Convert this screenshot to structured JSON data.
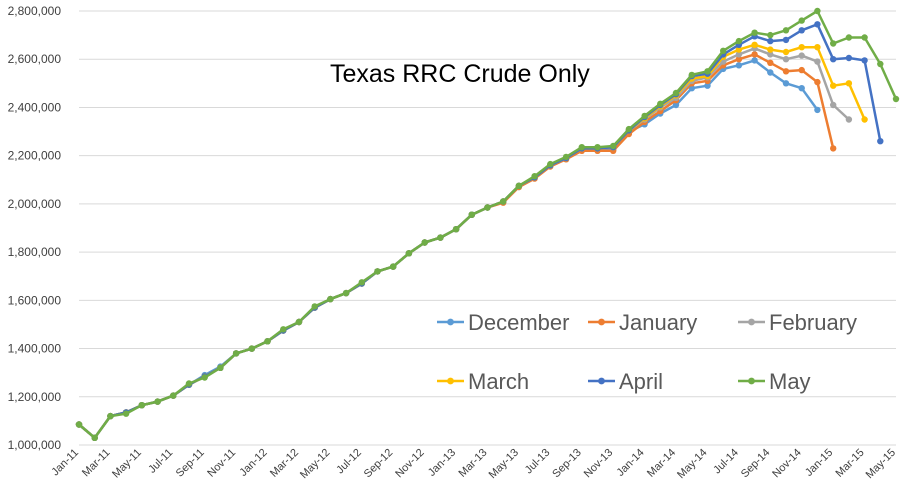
{
  "chart_data": {
    "type": "line",
    "title": "Texas RRC Crude Only",
    "xlabel": "",
    "ylabel": "",
    "ylim": [
      1000000,
      2800000
    ],
    "y_ticks": [
      1000000,
      1200000,
      1400000,
      1600000,
      1800000,
      2000000,
      2200000,
      2400000,
      2600000,
      2800000
    ],
    "y_tick_labels": [
      "1,000,000",
      "1,200,000",
      "1,400,000",
      "1,600,000",
      "1,800,000",
      "2,000,000",
      "2,200,000",
      "2,400,000",
      "2,600,000",
      "2,800,000"
    ],
    "grid": true,
    "legend_position": "lower-right",
    "x": [
      "Jan-11",
      "Feb-11",
      "Mar-11",
      "Apr-11",
      "May-11",
      "Jun-11",
      "Jul-11",
      "Aug-11",
      "Sep-11",
      "Oct-11",
      "Nov-11",
      "Dec-11",
      "Jan-12",
      "Feb-12",
      "Mar-12",
      "Apr-12",
      "May-12",
      "Jun-12",
      "Jul-12",
      "Aug-12",
      "Sep-12",
      "Oct-12",
      "Nov-12",
      "Dec-12",
      "Jan-13",
      "Feb-13",
      "Mar-13",
      "Apr-13",
      "May-13",
      "Jun-13",
      "Jul-13",
      "Aug-13",
      "Sep-13",
      "Oct-13",
      "Nov-13",
      "Dec-13",
      "Jan-14",
      "Feb-14",
      "Mar-14",
      "Apr-14",
      "May-14",
      "Jun-14",
      "Jul-14",
      "Aug-14",
      "Sep-14",
      "Oct-14",
      "Nov-14",
      "Dec-14",
      "Jan-15",
      "Feb-15",
      "Mar-15",
      "Apr-15",
      "May-15"
    ],
    "x_tick_labels": [
      "Jan-11",
      "Mar-11",
      "May-11",
      "Jul-11",
      "Sep-11",
      "Nov-11",
      "Jan-12",
      "Mar-12",
      "May-12",
      "Jul-12",
      "Sep-12",
      "Nov-12",
      "Jan-13",
      "Mar-13",
      "May-13",
      "Jul-13",
      "Sep-13",
      "Nov-13",
      "Jan-14",
      "Mar-14",
      "May-14",
      "Jul-14",
      "Sep-14",
      "Nov-14",
      "Jan-15",
      "Mar-15",
      "May-15"
    ],
    "series": [
      {
        "name": "December",
        "color": "#5b9bd5",
        "values": [
          1085000,
          1030000,
          1120000,
          1135000,
          1165000,
          1180000,
          1205000,
          1250000,
          1290000,
          1325000,
          1380000,
          1400000,
          1430000,
          1475000,
          1510000,
          1570000,
          1605000,
          1630000,
          1670000,
          1720000,
          1740000,
          1795000,
          1840000,
          1860000,
          1895000,
          1955000,
          1985000,
          2010000,
          2070000,
          2110000,
          2160000,
          2190000,
          2225000,
          2225000,
          2225000,
          2300000,
          2330000,
          2375000,
          2410000,
          2480000,
          2490000,
          2560000,
          2575000,
          2595000,
          2545000,
          2500000,
          2480000,
          2390000,
          null,
          null,
          null,
          null,
          null
        ]
      },
      {
        "name": "January",
        "color": "#ed7d31",
        "values": [
          1085000,
          1030000,
          1120000,
          1135000,
          1165000,
          1180000,
          1205000,
          1250000,
          1285000,
          1320000,
          1380000,
          1400000,
          1430000,
          1475000,
          1510000,
          1570000,
          1605000,
          1630000,
          1670000,
          1720000,
          1740000,
          1795000,
          1840000,
          1860000,
          1895000,
          1955000,
          1985000,
          2005000,
          2070000,
          2105000,
          2155000,
          2185000,
          2220000,
          2220000,
          2220000,
          2290000,
          2340000,
          2385000,
          2430000,
          2500000,
          2510000,
          2575000,
          2600000,
          2620000,
          2585000,
          2550000,
          2555000,
          2505000,
          2230000,
          null,
          null,
          null,
          null
        ]
      },
      {
        "name": "February",
        "color": "#a5a5a5",
        "values": [
          1085000,
          1030000,
          1120000,
          1135000,
          1165000,
          1180000,
          1205000,
          1250000,
          1285000,
          1320000,
          1380000,
          1400000,
          1430000,
          1475000,
          1510000,
          1570000,
          1605000,
          1630000,
          1670000,
          1720000,
          1740000,
          1795000,
          1840000,
          1860000,
          1895000,
          1955000,
          1985000,
          2010000,
          2075000,
          2110000,
          2160000,
          2190000,
          2230000,
          2230000,
          2235000,
          2305000,
          2350000,
          2400000,
          2440000,
          2510000,
          2525000,
          2590000,
          2620000,
          2645000,
          2620000,
          2600000,
          2615000,
          2590000,
          2410000,
          2350000,
          null,
          null,
          null
        ]
      },
      {
        "name": "March",
        "color": "#ffc000",
        "values": [
          1085000,
          1030000,
          1120000,
          1135000,
          1165000,
          1180000,
          1205000,
          1250000,
          1285000,
          1320000,
          1380000,
          1400000,
          1430000,
          1475000,
          1510000,
          1570000,
          1605000,
          1630000,
          1670000,
          1720000,
          1740000,
          1795000,
          1840000,
          1860000,
          1895000,
          1955000,
          1985000,
          2010000,
          2075000,
          2110000,
          2160000,
          2190000,
          2230000,
          2230000,
          2235000,
          2305000,
          2355000,
          2405000,
          2450000,
          2520000,
          2530000,
          2610000,
          2640000,
          2660000,
          2640000,
          2630000,
          2650000,
          2650000,
          2490000,
          2500000,
          2350000,
          null,
          null
        ]
      },
      {
        "name": "April",
        "color": "#4472c4",
        "values": [
          1085000,
          1030000,
          1120000,
          1135000,
          1165000,
          1180000,
          1205000,
          1250000,
          1285000,
          1320000,
          1380000,
          1400000,
          1430000,
          1475000,
          1510000,
          1570000,
          1605000,
          1630000,
          1670000,
          1720000,
          1740000,
          1795000,
          1840000,
          1860000,
          1895000,
          1955000,
          1985000,
          2010000,
          2075000,
          2110000,
          2160000,
          2190000,
          2230000,
          2230000,
          2235000,
          2305000,
          2360000,
          2410000,
          2455000,
          2530000,
          2540000,
          2620000,
          2660000,
          2695000,
          2675000,
          2680000,
          2720000,
          2745000,
          2600000,
          2605000,
          2595000,
          2260000,
          null
        ]
      },
      {
        "name": "May",
        "color": "#70ad47",
        "values": [
          1085000,
          1030000,
          1120000,
          1130000,
          1165000,
          1180000,
          1205000,
          1255000,
          1280000,
          1320000,
          1380000,
          1400000,
          1430000,
          1480000,
          1510000,
          1575000,
          1605000,
          1630000,
          1675000,
          1720000,
          1740000,
          1795000,
          1840000,
          1860000,
          1895000,
          1955000,
          1985000,
          2010000,
          2075000,
          2115000,
          2165000,
          2195000,
          2235000,
          2235000,
          2240000,
          2310000,
          2365000,
          2415000,
          2460000,
          2535000,
          2550000,
          2635000,
          2675000,
          2710000,
          2700000,
          2720000,
          2760000,
          2800000,
          2665000,
          2690000,
          2690000,
          2580000,
          2435000
        ]
      }
    ]
  }
}
